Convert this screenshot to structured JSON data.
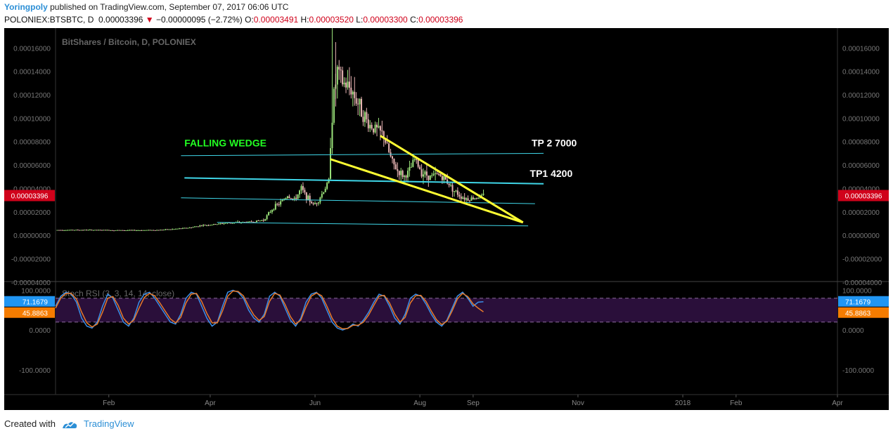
{
  "header": {
    "author": "Yoringpoly",
    "published": "published on TradingView.com, September 07, 2017 06:06 UTC",
    "symbol_line": "POLONIEX:BTSBTC, D",
    "last_price": "0.00003396",
    "change_arrow": "▼",
    "change": "−0.00000095 (−2.72%)",
    "open_label": "O:",
    "open": "0.00003491",
    "high_label": "H:",
    "high": "0.00003520",
    "low_label": "L:",
    "low": "0.00003300",
    "close_label": "C:",
    "close": "0.00003396"
  },
  "footer": {
    "created_with": "Created with",
    "brand": "TradingView"
  },
  "colors": {
    "background": "#000000",
    "up_candle": "#9be37a",
    "down_candle": "#e8b4b4",
    "wedge": "#ffff33",
    "channel": "#3fd6e8",
    "label_green": "#22ff22",
    "price_badge": "#d0021b",
    "rsi_k": "#3b8fe8",
    "rsi_d": "#e87a2a",
    "rsi_band": "#2a0f3a",
    "rsi_k_badge": "#2196f3",
    "rsi_d_badge": "#f57c00"
  },
  "chart_data": [
    {
      "type": "candlestick",
      "title": "BitShares / Bitcoin, D, POLONIEX",
      "y_ticks": [
        "0.00016000",
        "0.00014000",
        "0.00012000",
        "0.00010000",
        "0.00008000",
        "0.00006000",
        "0.00004000",
        "0.00002000",
        "0.00000000",
        "-0.00002000",
        "-0.00004000"
      ],
      "y_tick_values": [
        0.00016,
        0.00014,
        0.00012,
        0.0001,
        8e-05,
        6e-05,
        4e-05,
        2e-05,
        0,
        -2e-05,
        -4e-05
      ],
      "ylim": [
        -3.95e-05,
        0.000177
      ],
      "x_ticks": [
        "Feb",
        "Apr",
        "Jun",
        "Aug",
        "Sep",
        "Nov",
        "2018",
        "Feb",
        "Apr"
      ],
      "x_tick_dates": [
        "2017-02-01",
        "2017-04-01",
        "2017-06-01",
        "2017-08-01",
        "2017-09-01",
        "2017-11-01",
        "2018-01-01",
        "2018-02-01",
        "2018-04-01"
      ],
      "xlim": [
        "2017-01-01",
        "2018-04-01"
      ],
      "current_price_label": "0.00003396",
      "current_price": 3.396e-05,
      "annotations": [
        {
          "text": "FALLING WEDGE",
          "date": "2017-03-17",
          "value": 7.6e-05
        },
        {
          "text": "TP 2 7000",
          "date": "2017-10-05",
          "value": 7.6e-05
        },
        {
          "text": "TP1 4200",
          "date": "2017-10-04",
          "value": 5e-05
        }
      ],
      "price_path": [
        [
          "2017-01-01",
          4.5e-06
        ],
        [
          "2017-01-15",
          4.6e-06
        ],
        [
          "2017-02-01",
          4.4e-06
        ],
        [
          "2017-02-15",
          4.3e-06
        ],
        [
          "2017-03-01",
          4.5e-06
        ],
        [
          "2017-03-10",
          5.2e-06
        ],
        [
          "2017-03-20",
          6.5e-06
        ],
        [
          "2017-03-27",
          8.5e-06
        ],
        [
          "2017-04-03",
          9.2e-06
        ],
        [
          "2017-04-10",
          1.05e-05
        ],
        [
          "2017-04-18",
          1.1e-05
        ],
        [
          "2017-04-25",
          1.15e-05
        ],
        [
          "2017-05-02",
          1.3e-05
        ],
        [
          "2017-05-08",
          2.4e-05
        ],
        [
          "2017-05-12",
          2.8e-05
        ],
        [
          "2017-05-16",
          3.4e-05
        ],
        [
          "2017-05-20",
          3e-05
        ],
        [
          "2017-05-24",
          4e-05
        ],
        [
          "2017-05-27",
          3.3e-05
        ],
        [
          "2017-05-31",
          2.6e-05
        ],
        [
          "2017-06-03",
          3e-05
        ],
        [
          "2017-06-06",
          3.8e-05
        ],
        [
          "2017-06-09",
          4.6e-05
        ],
        [
          "2017-06-10",
          8e-05
        ],
        [
          "2017-06-12",
          0.00012
        ],
        [
          "2017-06-14",
          0.00014
        ],
        [
          "2017-06-17",
          0.00013
        ],
        [
          "2017-06-22",
          0.000125
        ],
        [
          "2017-06-27",
          0.00011
        ],
        [
          "2017-07-02",
          9.5e-05
        ],
        [
          "2017-07-07",
          9e-05
        ],
        [
          "2017-07-11",
          8.5e-05
        ],
        [
          "2017-07-13",
          7.5e-05
        ],
        [
          "2017-07-16",
          6.2e-05
        ],
        [
          "2017-07-19",
          5.5e-05
        ],
        [
          "2017-07-23",
          5e-05
        ],
        [
          "2017-07-26",
          5.5e-05
        ],
        [
          "2017-07-29",
          6.5e-05
        ],
        [
          "2017-08-02",
          5.4e-05
        ],
        [
          "2017-08-07",
          5e-05
        ],
        [
          "2017-08-12",
          5.2e-05
        ],
        [
          "2017-08-17",
          4.6e-05
        ],
        [
          "2017-08-21",
          3.8e-05
        ],
        [
          "2017-08-25",
          3.3e-05
        ],
        [
          "2017-08-29",
          3.1e-05
        ],
        [
          "2017-09-02",
          3.2e-05
        ],
        [
          "2017-09-05",
          3.3e-05
        ],
        [
          "2017-09-07",
          3.4e-05
        ]
      ],
      "channel_lines": [
        {
          "from": [
            "2017-03-15",
            6.8e-05
          ],
          "to": [
            "2017-10-12",
            7e-05
          ]
        },
        {
          "from": [
            "2017-03-17",
            4.9e-05
          ],
          "to": [
            "2017-10-12",
            4.4e-05
          ]
        },
        {
          "from": [
            "2017-03-15",
            3.2e-05
          ],
          "to": [
            "2017-10-07",
            2.7e-05
          ]
        },
        {
          "from": [
            "2017-04-05",
            1.1e-05
          ],
          "to": [
            "2017-10-03",
            8e-06
          ]
        }
      ],
      "wedge_lines": [
        {
          "from": [
            "2017-06-10",
            6.5e-05
          ],
          "to": [
            "2017-09-30",
            1.1e-05
          ]
        },
        {
          "from": [
            "2017-07-09",
            8.5e-05
          ],
          "to": [
            "2017-09-30",
            1.1e-05
          ]
        }
      ]
    },
    {
      "type": "line",
      "title": "Stoch RSI (3, 3, 14, 14, close)",
      "y_ticks": [
        "100.0000",
        "0.0000",
        "-100.0000"
      ],
      "y_tick_values": [
        100,
        0,
        -100
      ],
      "ylim": [
        -160,
        120
      ],
      "band": [
        20,
        80
      ],
      "series": [
        {
          "name": "K",
          "last_value": "71.1679",
          "values": [
            60,
            85,
            95,
            90,
            70,
            30,
            10,
            5,
            20,
            60,
            90,
            80,
            50,
            20,
            10,
            30,
            70,
            90,
            95,
            80,
            60,
            40,
            20,
            15,
            40,
            80,
            95,
            90,
            60,
            30,
            10,
            20,
            60,
            95,
            100,
            95,
            80,
            50,
            30,
            20,
            40,
            85,
            95,
            85,
            55,
            25,
            10,
            30,
            70,
            90,
            95,
            80,
            50,
            20,
            5,
            0,
            5,
            15,
            10,
            25,
            45,
            70,
            90,
            85,
            60,
            30,
            15,
            40,
            80,
            90,
            85,
            65,
            40,
            20,
            10,
            25,
            55,
            85,
            95,
            80,
            60,
            70,
            71.1679
          ]
        },
        {
          "name": "D",
          "last_value": "45.8863",
          "values": [
            55,
            80,
            92,
            92,
            78,
            45,
            18,
            8,
            15,
            45,
            80,
            84,
            62,
            30,
            15,
            25,
            55,
            82,
            92,
            86,
            68,
            48,
            28,
            18,
            32,
            68,
            90,
            92,
            72,
            42,
            18,
            18,
            48,
            85,
            98,
            97,
            86,
            60,
            38,
            24,
            34,
            72,
            92,
            88,
            64,
            34,
            15,
            25,
            58,
            85,
            93,
            86,
            60,
            30,
            10,
            3,
            4,
            12,
            12,
            20,
            38,
            62,
            85,
            87,
            68,
            40,
            20,
            32,
            68,
            86,
            87,
            72,
            48,
            26,
            14,
            22,
            48,
            78,
            92,
            84,
            66,
            55,
            45.8863
          ]
        }
      ]
    }
  ]
}
